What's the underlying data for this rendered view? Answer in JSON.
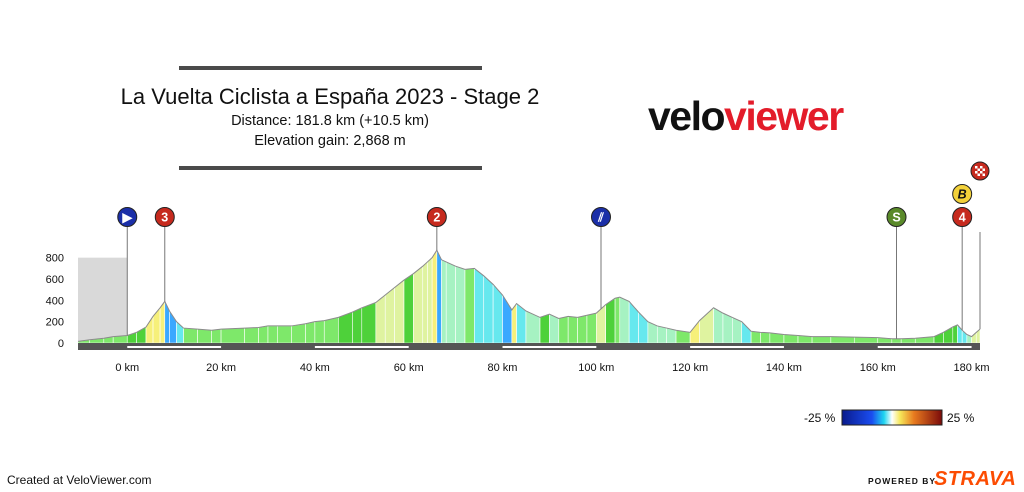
{
  "header": {
    "title": "La Vuelta Ciclista a España 2023 - Stage 2",
    "distance": "Distance: 181.8 km (+10.5 km)",
    "elevation": "Elevation gain: 2,868 m"
  },
  "logo": {
    "part1": "velo",
    "part2": "viewer"
  },
  "footer": {
    "credit": "Created at VeloViewer.com",
    "powered": "POWERED BY",
    "strava": "STRAVA"
  },
  "gradient_legend": {
    "min_label": "-25 %",
    "max_label": "25 %",
    "min": -25,
    "max": 25
  },
  "markers": [
    {
      "icon": "start-flag-icon",
      "km": 0,
      "glyph": "▶",
      "color": "#1b2fa8"
    },
    {
      "icon": "kom-cat3-icon",
      "km": 8,
      "glyph": "3",
      "color": "#c62a1e"
    },
    {
      "icon": "kom-cat2-icon",
      "km": 66,
      "glyph": "2",
      "color": "#c62a1e"
    },
    {
      "icon": "feed-zone-icon",
      "km": 101,
      "glyph": "⫽",
      "color": "#1b2fa8"
    },
    {
      "icon": "sprint-icon",
      "km": 164,
      "glyph": "S",
      "color": "#5a8a2a"
    },
    {
      "icon": "kom-cat4-icon",
      "km": 178,
      "glyph": "4",
      "color": "#c62a1e"
    },
    {
      "icon": "bonus-icon",
      "km": 178,
      "glyph": "B",
      "color": "#f2d13a"
    },
    {
      "icon": "finish-flag-icon",
      "km": 181.8,
      "glyph": "",
      "color": "#c62a1e"
    }
  ],
  "chart_data": {
    "type": "area",
    "title": "",
    "xlabel": "",
    "ylabel": "",
    "x_unit": "km",
    "xlim": [
      -10.5,
      181.8
    ],
    "ylim": [
      0,
      900
    ],
    "x_ticks": [
      0,
      20,
      40,
      60,
      80,
      100,
      120,
      140,
      160,
      180
    ],
    "x_tick_labels": [
      "0 km",
      "20 km",
      "40 km",
      "60 km",
      "80 km",
      "100 km",
      "120 km",
      "140 km",
      "160 km",
      "180 km"
    ],
    "y_ticks": [
      0,
      200,
      400,
      600,
      800
    ],
    "y_tick_labels": [
      "0",
      "200",
      "400",
      "600",
      "800"
    ],
    "neutral_zone_km": [
      -10.5,
      0
    ],
    "series": [
      {
        "distance_km": [
          -10.5,
          -8,
          -5,
          -3,
          0,
          2,
          4,
          5.5,
          7,
          8,
          9,
          10.5,
          12,
          15,
          18,
          20,
          25,
          28,
          30,
          32,
          35,
          38,
          40,
          42,
          45,
          48,
          50,
          53,
          55,
          57,
          59,
          61,
          63,
          64,
          65,
          66,
          67,
          68,
          70,
          72,
          74,
          76,
          78,
          80,
          82,
          83,
          85,
          88,
          90,
          92,
          94,
          96,
          98,
          100,
          102,
          104,
          105,
          107,
          109,
          111,
          113,
          115,
          117,
          120,
          122,
          125,
          127,
          129,
          131,
          133,
          135,
          137,
          140,
          143,
          146,
          150,
          155,
          160,
          163,
          165,
          168,
          172,
          174,
          176,
          177,
          178,
          179,
          180,
          181,
          181.8
        ],
        "elevation_m": [
          15,
          30,
          45,
          60,
          70,
          100,
          150,
          250,
          330,
          390,
          300,
          200,
          140,
          130,
          120,
          130,
          140,
          145,
          160,
          160,
          160,
          180,
          200,
          210,
          240,
          290,
          330,
          380,
          450,
          520,
          590,
          650,
          720,
          760,
          800,
          870,
          780,
          760,
          720,
          690,
          700,
          630,
          550,
          450,
          310,
          370,
          300,
          240,
          270,
          230,
          250,
          240,
          260,
          280,
          360,
          420,
          430,
          390,
          290,
          200,
          160,
          140,
          120,
          100,
          210,
          330,
          280,
          240,
          200,
          110,
          100,
          95,
          80,
          70,
          60,
          60,
          55,
          50,
          40,
          40,
          45,
          60,
          100,
          150,
          170,
          120,
          80,
          60,
          100,
          130
        ]
      }
    ]
  }
}
